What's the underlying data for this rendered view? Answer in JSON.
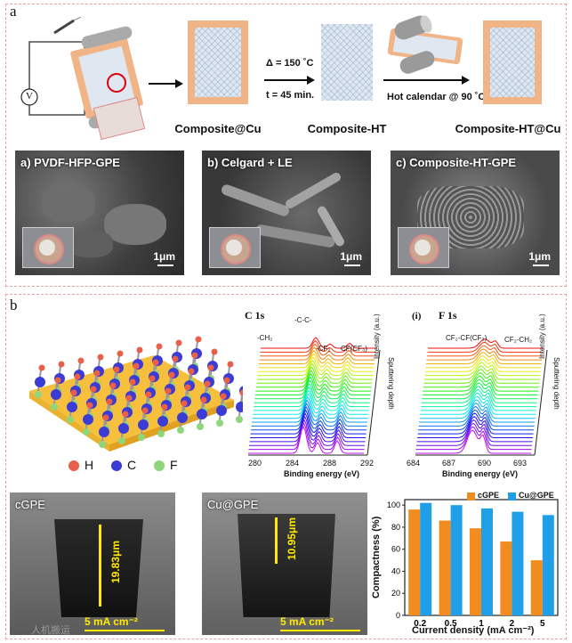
{
  "panel_a": {
    "label": "a",
    "process": {
      "composite_cu": "Composite@Cu",
      "condition_temp": "Δ = 150 ˚C",
      "condition_time": "t = 45 min.",
      "composite_ht": "Composite-HT",
      "calendar": "Hot calendar @ 90 ˚C",
      "composite_ht_cu": "Composite-HT@Cu",
      "voltmeter": "V"
    },
    "sem": [
      {
        "title": "a) PVDF-HFP-GPE",
        "scale": "1μm"
      },
      {
        "title": "b) Celgard + LE",
        "scale": "1μm"
      },
      {
        "title": "c) Composite-HT-GPE",
        "scale": "1μm"
      }
    ]
  },
  "panel_b": {
    "label": "b",
    "legend": {
      "h": "H",
      "c": "C",
      "f": "F",
      "colors": {
        "h": "#e8604a",
        "c": "#3b3bd6",
        "f": "#8fd67a"
      }
    },
    "xps_c": {
      "title": "C 1s",
      "peaks": [
        "-CH₂",
        "-C-C-",
        "-CF₂",
        "CF(CF₃)"
      ],
      "ticks": [
        "280",
        "284",
        "288",
        "292"
      ],
      "xlabel": "Binding energy (eV)",
      "intensity_label": "Intensity (a.u.)",
      "depth_label": "Sputtering depth"
    },
    "xps_f": {
      "marker": "(i)",
      "title": "F 1s",
      "peaks": [
        "CF₂-CF(CF₃)",
        "CF₂-CH₂"
      ],
      "ticks": [
        "684",
        "687",
        "690",
        "693"
      ],
      "xlabel": "Binding energy (eV)",
      "intensity_label": "Intensity (a.u.)",
      "depth_label": "Sputtering depth"
    },
    "cross_sections": [
      {
        "label": "cGPE",
        "thickness": "19.83μm",
        "current": "5 mA cm⁻²"
      },
      {
        "label": "Cu@GPE",
        "thickness": "10.95μm",
        "current": "5 mA cm⁻²"
      }
    ],
    "watermark": "人机搬运"
  },
  "chart_data": {
    "type": "bar",
    "categories": [
      "0.2",
      "0.5",
      "1",
      "2",
      "5"
    ],
    "series": [
      {
        "name": "cGPE",
        "color": "#f28c1e",
        "values": [
          96,
          86,
          79,
          67,
          50
        ]
      },
      {
        "name": "Cu@GPE",
        "color": "#1f9fe8",
        "values": [
          102,
          100,
          97,
          94,
          91
        ]
      }
    ],
    "xlabel": "Current density (mA cm⁻²)",
    "ylabel": "Compactness (%)",
    "ylim": [
      0,
      105
    ],
    "yticks": [
      "0",
      "20",
      "40",
      "60",
      "80",
      "100"
    ],
    "legend_position": "top-right"
  }
}
